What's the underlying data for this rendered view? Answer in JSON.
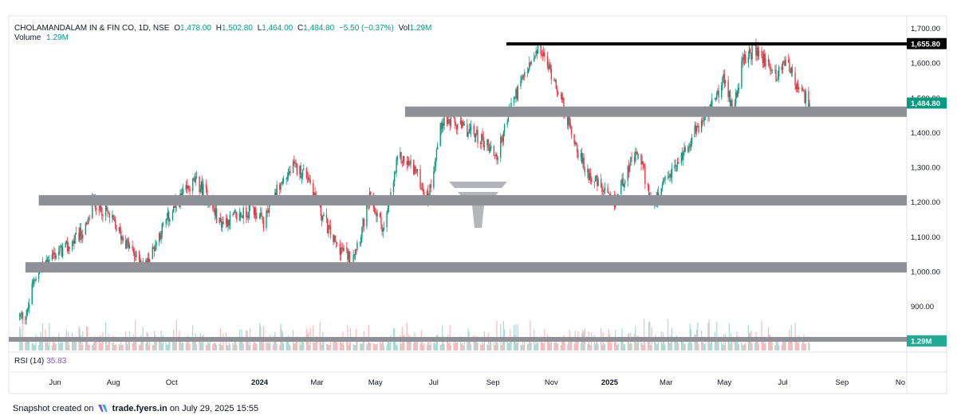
{
  "header": {
    "symbol": "CHOLAMANDALAM IN & FIN CO, 1D, NSE",
    "o_label": "O",
    "o_value": "1,478.00",
    "h_label": "H",
    "h_value": "1,502.80",
    "l_label": "L",
    "l_value": "1,464.00",
    "c_label": "C",
    "c_value": "1,484.80",
    "change": "−5.50 (−0.37%)",
    "vol_label": "Vol",
    "vol_value": "1.29M"
  },
  "volume_legend": {
    "label": "Volume",
    "value": "1.29M"
  },
  "rsi_legend": {
    "label": "RSI (14)",
    "value": "35.83"
  },
  "footer": {
    "prefix": "Snapshot created on",
    "brand": "trade.fyers.in",
    "suffix": "on July 29, 2025 15:55"
  },
  "chart_data": {
    "type": "candlestick",
    "ylim": [
      850,
      1725
    ],
    "y_ticks": [
      "1,700.00",
      "1,600.00",
      "1,500.00",
      "1,400.00",
      "1,300.00",
      "1,200.00",
      "1,100.00",
      "1,000.00",
      "900.00"
    ],
    "y_tick_values": [
      1700,
      1600,
      1500,
      1400,
      1300,
      1200,
      1100,
      1000,
      900
    ],
    "x_ticks": [
      "Jun",
      "Aug",
      "Oct",
      "2024",
      "Mar",
      "May",
      "Jul",
      "Sep",
      "Nov",
      "2025",
      "Mar",
      "May",
      "Jul",
      "Sep",
      "No"
    ],
    "x_tick_dates": [
      "2023-06-01",
      "2023-08-01",
      "2023-10-01",
      "2024-01-01",
      "2024-03-01",
      "2024-05-01",
      "2024-07-01",
      "2024-09-01",
      "2024-11-01",
      "2025-01-01",
      "2025-03-01",
      "2025-05-01",
      "2025-07-01",
      "2025-09-01",
      "2025-11-01"
    ],
    "price_tags": [
      {
        "label": "1,655.80",
        "value": 1655.8,
        "style": "black"
      },
      {
        "label": "1,484.80",
        "value": 1484.8,
        "style": "green"
      },
      {
        "label": "1.29M",
        "value": "volume",
        "style": "teal"
      }
    ],
    "zones": [
      {
        "value": 1655,
        "color": "#000000",
        "kind": "resistance-line",
        "from": "2024-09-15"
      },
      {
        "value": 1460,
        "color": "#909196",
        "kind": "support-band",
        "from": "2024-06-01"
      },
      {
        "value": 1205,
        "color": "#909196",
        "kind": "support-band",
        "from": "2023-05-15"
      },
      {
        "value": 1012,
        "color": "#909196",
        "kind": "support-band",
        "from": "2023-05-01"
      }
    ],
    "price_path": [
      [
        "2023-04-25",
        870
      ],
      [
        "2023-05-03",
        880
      ],
      [
        "2023-05-10",
        980
      ],
      [
        "2023-05-25",
        1040
      ],
      [
        "2023-06-15",
        1070
      ],
      [
        "2023-07-05",
        1130
      ],
      [
        "2023-07-10",
        1205
      ],
      [
        "2023-07-25",
        1170
      ],
      [
        "2023-08-10",
        1100
      ],
      [
        "2023-08-25",
        1040
      ],
      [
        "2023-09-05",
        1020
      ],
      [
        "2023-09-20",
        1120
      ],
      [
        "2023-10-10",
        1210
      ],
      [
        "2023-10-25",
        1260
      ],
      [
        "2023-11-05",
        1230
      ],
      [
        "2023-11-20",
        1140
      ],
      [
        "2023-12-10",
        1160
      ],
      [
        "2023-12-25",
        1180
      ],
      [
        "2024-01-05",
        1140
      ],
      [
        "2024-01-20",
        1240
      ],
      [
        "2024-02-05",
        1300
      ],
      [
        "2024-02-20",
        1280
      ],
      [
        "2024-03-05",
        1170
      ],
      [
        "2024-03-20",
        1080
      ],
      [
        "2024-04-05",
        1040
      ],
      [
        "2024-04-15",
        1100
      ],
      [
        "2024-04-25",
        1210
      ],
      [
        "2024-05-10",
        1120
      ],
      [
        "2024-05-25",
        1330
      ],
      [
        "2024-06-10",
        1300
      ],
      [
        "2024-06-25",
        1210
      ],
      [
        "2024-07-10",
        1440
      ],
      [
        "2024-07-25",
        1420
      ],
      [
        "2024-08-10",
        1400
      ],
      [
        "2024-08-25",
        1370
      ],
      [
        "2024-09-05",
        1330
      ],
      [
        "2024-09-20",
        1480
      ],
      [
        "2024-10-05",
        1570
      ],
      [
        "2024-10-20",
        1640
      ],
      [
        "2024-11-05",
        1550
      ],
      [
        "2024-11-20",
        1420
      ],
      [
        "2024-12-05",
        1300
      ],
      [
        "2024-12-20",
        1250
      ],
      [
        "2025-01-05",
        1190
      ],
      [
        "2025-01-20",
        1300
      ],
      [
        "2025-02-01",
        1340
      ],
      [
        "2025-02-15",
        1180
      ],
      [
        "2025-03-01",
        1260
      ],
      [
        "2025-03-15",
        1320
      ],
      [
        "2025-03-30",
        1400
      ],
      [
        "2025-04-15",
        1460
      ],
      [
        "2025-04-30",
        1550
      ],
      [
        "2025-05-10",
        1470
      ],
      [
        "2025-05-20",
        1600
      ],
      [
        "2025-06-01",
        1640
      ],
      [
        "2025-06-15",
        1600
      ],
      [
        "2025-06-25",
        1560
      ],
      [
        "2025-07-05",
        1620
      ],
      [
        "2025-07-15",
        1530
      ],
      [
        "2025-07-25",
        1500
      ],
      [
        "2025-07-29",
        1485
      ]
    ],
    "last_close": 1484.8,
    "last_volume": "1.29M",
    "rsi_14": 35.83
  },
  "colors": {
    "up": "#089981",
    "down": "#f23645",
    "band": "#909196",
    "resistance": "#000000",
    "axis_border": "#e0e3eb",
    "watermark": "#b2b5be"
  }
}
